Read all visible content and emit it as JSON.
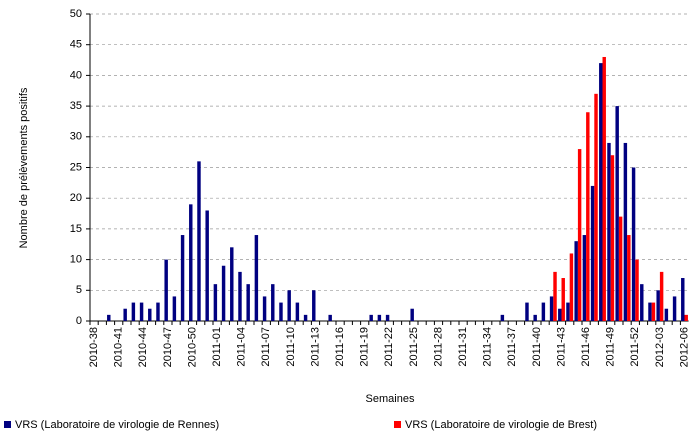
{
  "chart_data": {
    "type": "bar",
    "ylabel": "Nombre de prélèvements positifs",
    "xlabel": "Semaines",
    "categories": [
      "2010-38",
      null,
      null,
      "2010-41",
      null,
      null,
      "2010-44",
      null,
      null,
      "2010-47",
      null,
      null,
      "2010-50",
      null,
      null,
      "2011-01",
      null,
      null,
      "2011-04",
      null,
      null,
      "2011-07",
      null,
      null,
      "2011-10",
      null,
      null,
      "2011-13",
      null,
      null,
      "2011-16",
      null,
      null,
      "2011-19",
      null,
      null,
      "2011-22",
      null,
      null,
      "2011-25",
      null,
      null,
      "2011-28",
      null,
      null,
      "2011-31",
      null,
      null,
      "2011-34",
      null,
      null,
      "2011-37",
      null,
      null,
      "2011-40",
      null,
      null,
      "2011-43",
      null,
      null,
      "2011-46",
      null,
      null,
      "2011-49",
      null,
      null,
      "2011-52",
      null,
      null,
      "2012-03",
      null,
      null,
      "2012-06"
    ],
    "series": [
      {
        "name": "VRS (Laboratoire de virologie de Rennes)",
        "color": "#000080",
        "values": [
          0,
          0,
          1,
          0,
          2,
          3,
          3,
          2,
          3,
          10,
          4,
          14,
          19,
          26,
          18,
          6,
          9,
          12,
          8,
          6,
          14,
          4,
          6,
          3,
          5,
          3,
          1,
          5,
          0,
          1,
          0,
          0,
          0,
          0,
          1,
          1,
          1,
          0,
          0,
          2,
          0,
          0,
          0,
          0,
          0,
          0,
          0,
          0,
          0,
          0,
          1,
          0,
          0,
          3,
          1,
          3,
          4,
          2,
          3,
          13,
          14,
          22,
          42,
          29,
          35,
          29,
          25,
          6,
          3,
          5,
          2,
          4,
          7
        ]
      },
      {
        "name": "VRS (Laboratoire de virologie de Brest)",
        "color": "#ff0000",
        "values": [
          0,
          0,
          0,
          0,
          0,
          0,
          0,
          0,
          0,
          0,
          0,
          0,
          0,
          0,
          0,
          0,
          0,
          0,
          0,
          0,
          0,
          0,
          0,
          0,
          0,
          0,
          0,
          0,
          0,
          0,
          0,
          0,
          0,
          0,
          0,
          0,
          0,
          0,
          0,
          0,
          0,
          0,
          0,
          0,
          0,
          0,
          0,
          0,
          0,
          0,
          0,
          0,
          0,
          0,
          0,
          0,
          8,
          7,
          11,
          28,
          34,
          37,
          43,
          27,
          17,
          14,
          10,
          0,
          3,
          8,
          0,
          0,
          1
        ]
      }
    ],
    "ylim": [
      0,
      50
    ],
    "yticks": [
      0,
      5,
      10,
      15,
      20,
      25,
      30,
      35,
      40,
      45,
      50
    ],
    "grid": true,
    "legend": "bottom"
  }
}
